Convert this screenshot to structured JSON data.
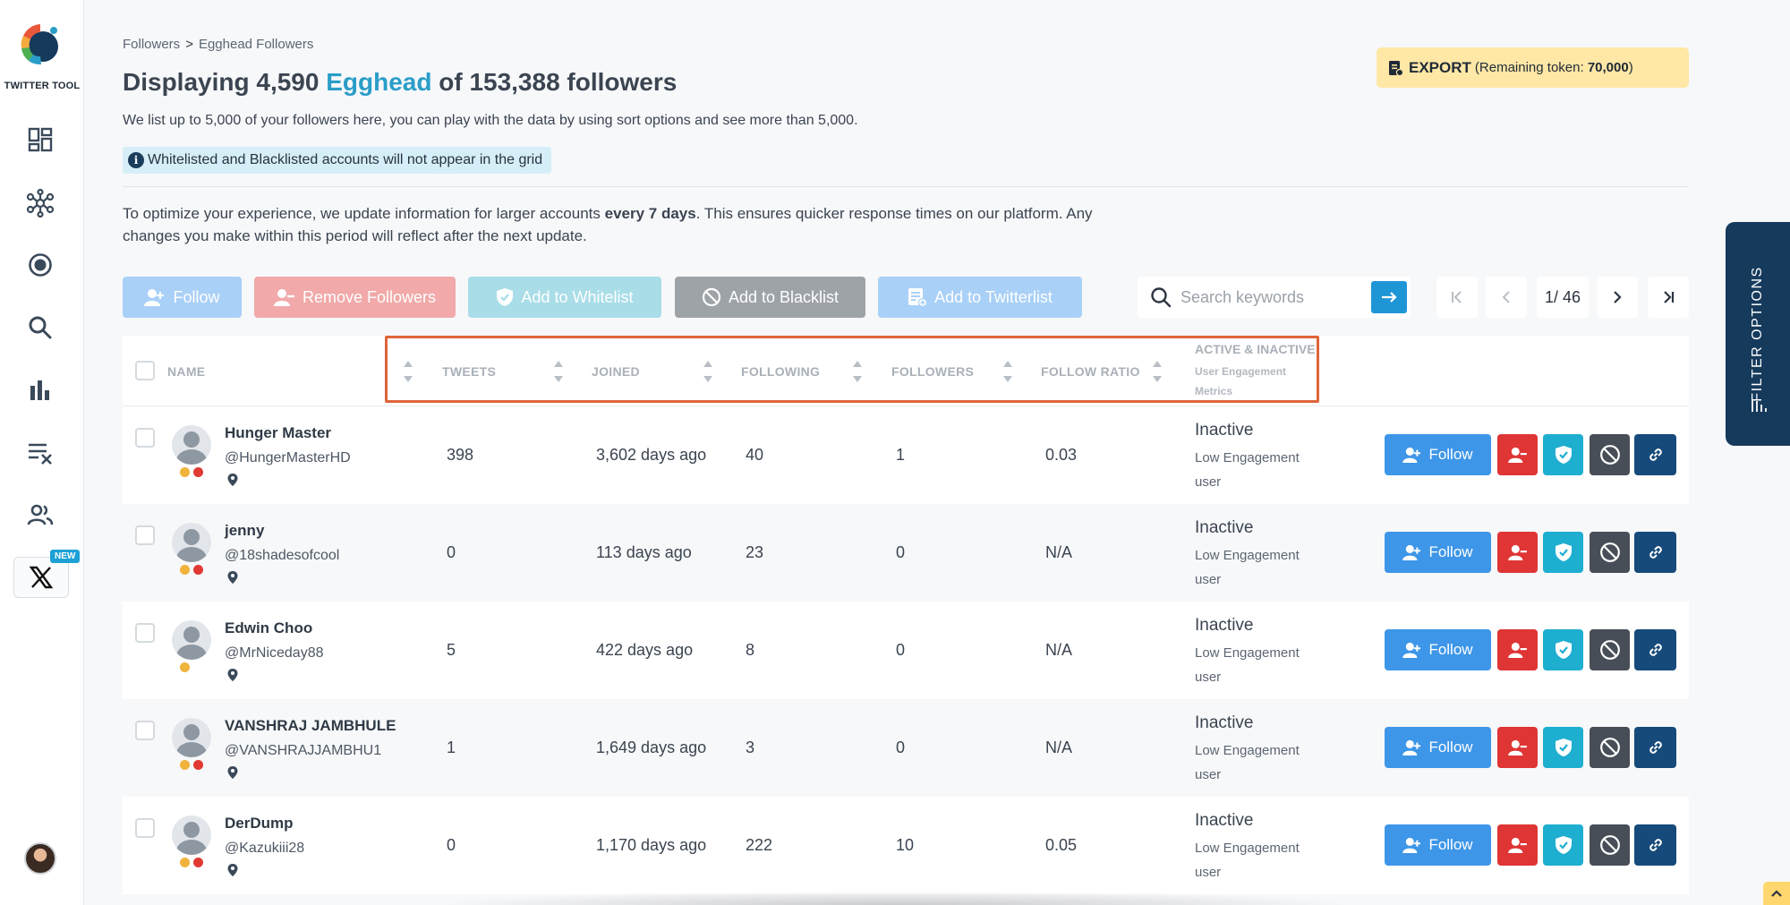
{
  "app": {
    "logo_text": "TWITTER TOOL",
    "new_badge": "NEW"
  },
  "sidebar": {
    "icons": [
      "dashboard-icon",
      "network-icon",
      "target-icon",
      "search-icon",
      "bar-chart-icon",
      "clear-list-icon",
      "users-icon",
      "x-logo-icon"
    ]
  },
  "breadcrumb": {
    "parent": "Followers",
    "separator": ">",
    "current": "Egghead Followers"
  },
  "header": {
    "title_prefix": "Displaying 4,590 ",
    "title_accent": "Egghead",
    "title_suffix": " of 153,388 followers",
    "subtitle": "We list up to 5,000 of your followers here, you can play with the data by using sort options and see more than 5,000.",
    "notice": "Whitelisted and Blacklisted accounts will not appear in the grid",
    "optimize_a": "To optimize your experience, we update information for larger accounts ",
    "optimize_bold": "every 7 days",
    "optimize_b": ". This ensures quicker response times on our platform. Any changes you make within this period will reflect after the next update."
  },
  "export": {
    "label": "EXPORT",
    "remaining_prefix": "(Remaining token: ",
    "remaining_value": "70,000",
    "remaining_suffix": ")",
    "color": "#ffe7a6"
  },
  "toolbar": {
    "follow": "Follow",
    "remove": "Remove Followers",
    "whitelist": "Add to Whitelist",
    "blacklist": "Add to Blacklist",
    "twitterlist": "Add to Twitterlist"
  },
  "search": {
    "placeholder": "Search keywords"
  },
  "pagination": {
    "current": "1/ 46"
  },
  "table": {
    "columns": {
      "name": "NAME",
      "tweets": "TWEETS",
      "joined": "JOINED",
      "following": "FOLLOWING",
      "followers": "FOLLOWERS",
      "ratio": "FOLLOW RATIO",
      "active": "ACTIVE & INACTIVE",
      "active_sub": "User Engagement Metrics"
    },
    "action_follow": "Follow",
    "rows": [
      {
        "name": "Hunger Master",
        "handle": "@HungerMasterHD",
        "tweets": "398",
        "joined": "3,602 days ago",
        "following": "40",
        "followers": "1",
        "ratio": "0.03",
        "status": "Inactive",
        "metric": "Low Engagement user",
        "dots": [
          "o",
          "r"
        ]
      },
      {
        "name": "jenny",
        "handle": "@18shadesofcool",
        "tweets": "0",
        "joined": "113 days ago",
        "following": "23",
        "followers": "0",
        "ratio": "N/A",
        "status": "Inactive",
        "metric": "Low Engagement user",
        "dots": [
          "o",
          "r"
        ]
      },
      {
        "name": "Edwin Choo",
        "handle": "@MrNiceday88",
        "tweets": "5",
        "joined": "422 days ago",
        "following": "8",
        "followers": "0",
        "ratio": "N/A",
        "status": "Inactive",
        "metric": "Low Engagement user",
        "dots": [
          "o"
        ]
      },
      {
        "name": "VANSHRAJ JAMBHULE",
        "handle": "@VANSHRAJJAMBHU1",
        "tweets": "1",
        "joined": "1,649 days ago",
        "following": "3",
        "followers": "0",
        "ratio": "N/A",
        "status": "Inactive",
        "metric": "Low Engagement user",
        "dots": [
          "o",
          "r"
        ]
      },
      {
        "name": "DerDump",
        "handle": "@Kazukiii28",
        "tweets": "0",
        "joined": "1,170 days ago",
        "following": "222",
        "followers": "10",
        "ratio": "0.05",
        "status": "Inactive",
        "metric": "Low Engagement user",
        "dots": [
          "o",
          "r"
        ]
      }
    ]
  },
  "filter_tab": {
    "label": "FILTER OPTIONS"
  },
  "colors": {
    "accent": "#2a9dc8",
    "highlight_border": "#e0643a",
    "follow_blue": "#3d96e8",
    "remove_red": "#df3535",
    "whitelist_teal": "#1eaed0",
    "blacklist_gray": "#474e57",
    "link_navy": "#164a7a"
  }
}
